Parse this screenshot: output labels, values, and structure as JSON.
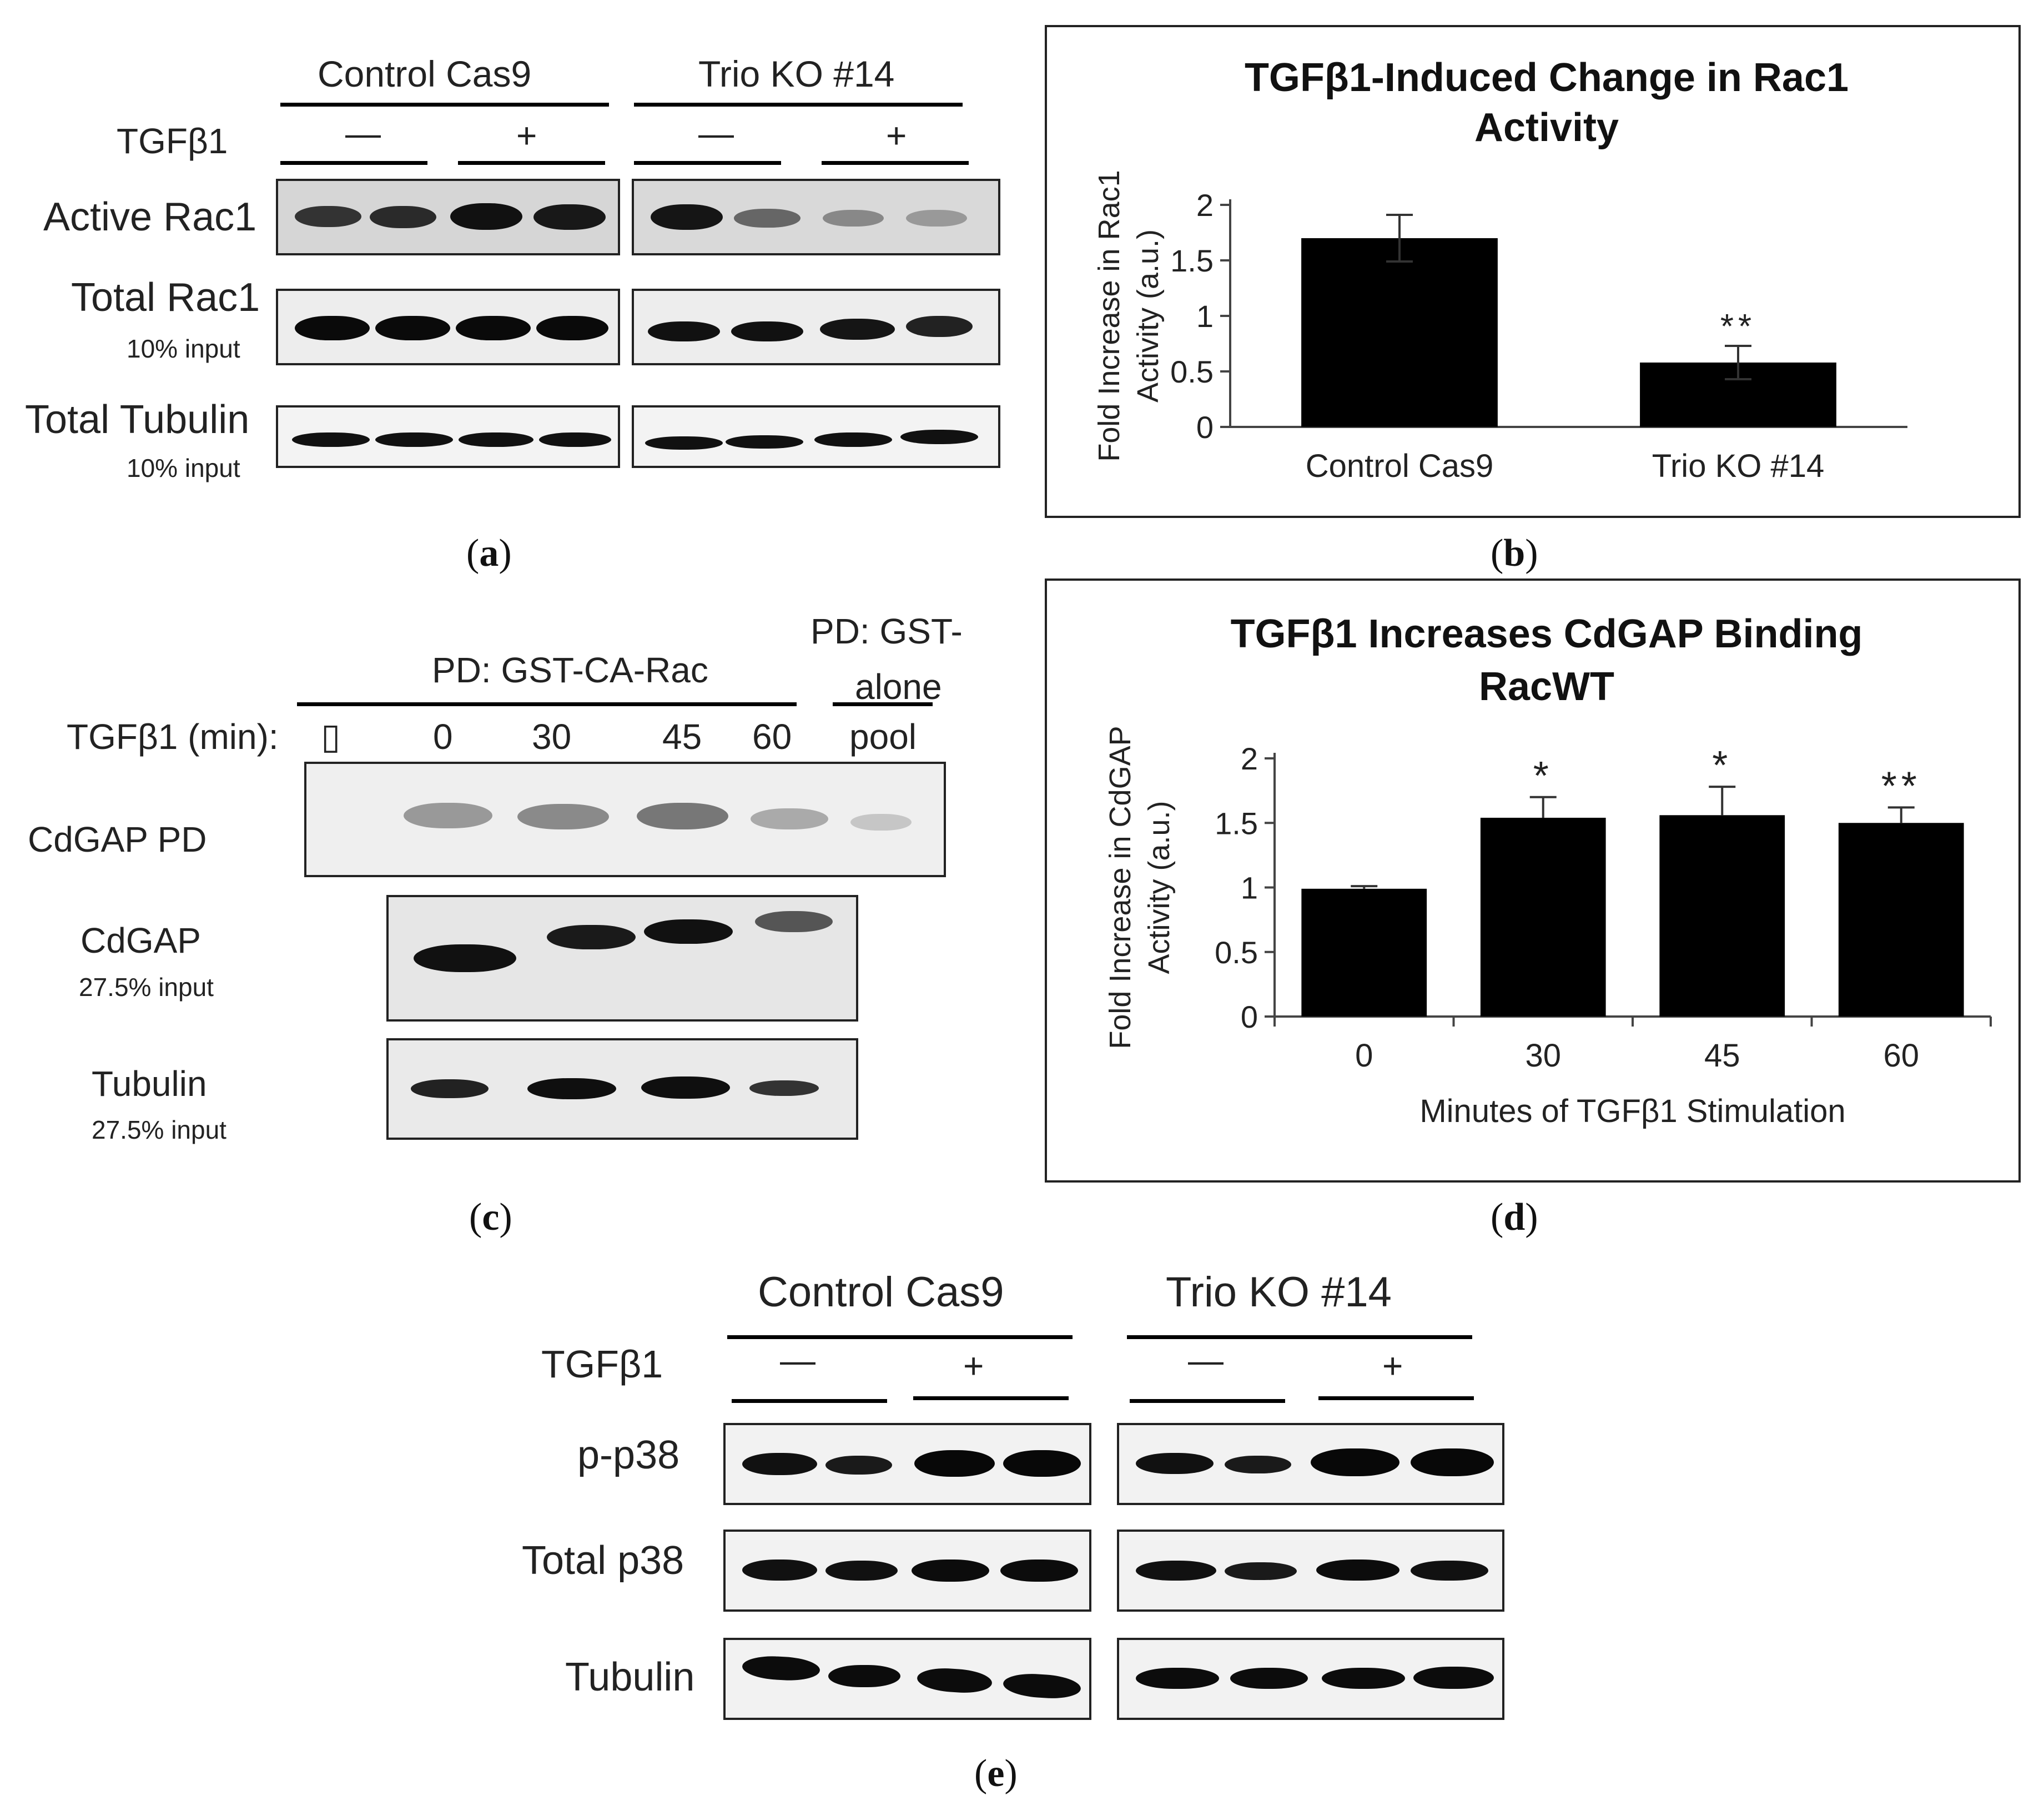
{
  "panel_a": {
    "group1": "Control Cas9",
    "group2": "Trio KO #14",
    "treatment": "TGFβ1",
    "minus": "—",
    "plus": "+",
    "rows": [
      {
        "name": "Active Rac1",
        "sub": ""
      },
      {
        "name": "Total Rac1",
        "sub": "10% input"
      },
      {
        "name": "Total Tubulin",
        "sub": "10% input"
      }
    ],
    "caption": "a"
  },
  "panel_b": {
    "caption": "b",
    "chart_data": {
      "type": "bar",
      "title": "TGFβ1-Induced Change in Rac1 Activity",
      "title_lines": [
        "TGFβ1-Induced Change in Rac1",
        "Activity"
      ],
      "ylabel": "Fold Increase in Rac1 Activity (a.u.)",
      "ylabel_lines": [
        "Fold Increase in Rac1",
        "Activity (a.u.)"
      ],
      "xlabel": "",
      "categories": [
        "Control Cas9",
        "Trio KO #14"
      ],
      "values": [
        1.7,
        0.58
      ],
      "errors": [
        0.21,
        0.15
      ],
      "annotations": [
        "",
        "**"
      ],
      "ylim": [
        0,
        2
      ],
      "yticks": [
        "0",
        "0.5",
        "1",
        "1.5",
        "2"
      ],
      "grid": false
    }
  },
  "panel_c": {
    "header": "PD: GST-CA-Rac",
    "header2_line1": "PD: GST-",
    "header2_line2": "alone",
    "treatment": "TGFβ1 (min):",
    "placeholder_glyph": "▯",
    "lanes": [
      "0",
      "30",
      "45",
      "60",
      "pool"
    ],
    "rows": [
      {
        "name": "CdGAP PD",
        "sub": ""
      },
      {
        "name": "CdGAP",
        "sub": "27.5% input"
      },
      {
        "name": "Tubulin",
        "sub": "27.5% input"
      }
    ],
    "caption": "c"
  },
  "panel_d": {
    "caption": "d",
    "chart_data": {
      "type": "bar",
      "title": "TGFβ1 Increases CdGAP Binding RacWT",
      "title_lines": [
        "TGFβ1 Increases CdGAP Binding",
        "RacWT"
      ],
      "ylabel": "Fold Increase in CdGAP Activity (a.u.)",
      "ylabel_lines": [
        "Fold Increase in CdGAP",
        "Activity (a.u.)"
      ],
      "xlabel": "Minutes of TGFβ1  Stimulation",
      "categories": [
        "0",
        "30",
        "45",
        "60"
      ],
      "values": [
        0.99,
        1.54,
        1.56,
        1.5
      ],
      "errors": [
        0.02,
        0.16,
        0.22,
        0.12
      ],
      "annotations": [
        "",
        "*",
        "*",
        "**"
      ],
      "ylim": [
        0,
        2
      ],
      "yticks": [
        "0",
        "0.5",
        "1",
        "1.5",
        "2"
      ],
      "grid": false
    }
  },
  "panel_e": {
    "group1": "Control Cas9",
    "group2": "Trio KO #14",
    "treatment": "TGFβ1",
    "minus": "—",
    "plus": "+",
    "rows": [
      {
        "name": "p-p38"
      },
      {
        "name": "Total p38"
      },
      {
        "name": "Tubulin"
      }
    ],
    "caption": "e"
  }
}
